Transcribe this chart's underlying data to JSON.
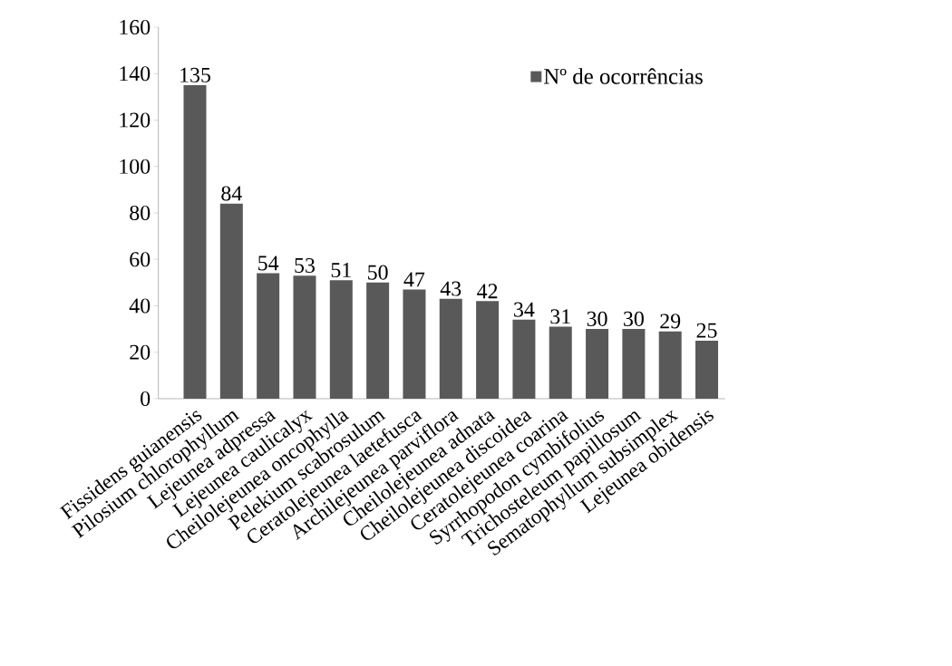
{
  "chart_data": {
    "type": "bar",
    "categories": [
      "Fissidens guianensis",
      "Pilosium chlorophyllum",
      "Lejeunea adpressa",
      "Lejeunea caulicalyx",
      "Cheilolejeunea oncophylla",
      "Pelekium scabrosulum",
      "Ceratolejeunea laetefusca",
      "Archilejeunea parviflora",
      "Cheilolejeunea adnata",
      "Cheilolejeunea discoidea",
      "Ceratolejeunea coarina",
      "Syrrhopodon cymbifolius",
      "Trichosteleum papillosum",
      "Sematophyllum subsimplex",
      "Lejeunea obidensis"
    ],
    "series": [
      {
        "name": "Nº de ocorrências",
        "color": "#595959",
        "values": [
          135,
          84,
          54,
          53,
          51,
          50,
          47,
          43,
          42,
          34,
          31,
          30,
          30,
          29,
          25
        ]
      }
    ],
    "ylim": [
      0,
      160
    ],
    "yticks": [
      0,
      20,
      40,
      60,
      80,
      100,
      120,
      140,
      160
    ],
    "data_labels": true,
    "legend": "top right",
    "grid": false
  }
}
